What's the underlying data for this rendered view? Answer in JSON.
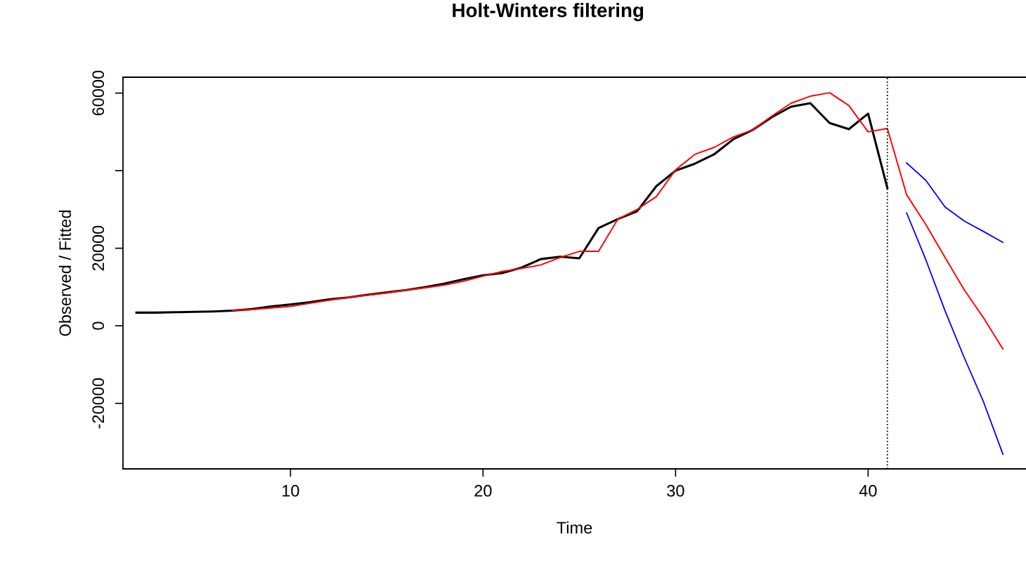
{
  "chart_data": {
    "type": "line",
    "title": "Holt-Winters filtering",
    "xlabel": "Time",
    "ylabel": "Observed / Fitted",
    "xlim": [
      1.3,
      48.2
    ],
    "xticks": [
      10,
      20,
      30,
      40
    ],
    "ylim": [
      -36900,
      64100
    ],
    "yticks": [
      -20000,
      0,
      20000,
      {
        "value": 40000,
        "label": null
      },
      60000
    ],
    "grid": false,
    "legend": false,
    "series": [
      {
        "color": "#000000",
        "x": [
          2,
          3,
          4,
          5,
          6,
          7,
          8,
          9,
          10,
          11,
          12,
          13,
          14,
          15,
          16,
          17,
          18,
          19,
          20,
          21,
          22,
          23,
          24,
          25,
          26,
          27,
          28,
          29,
          30,
          31,
          32,
          33,
          34,
          35,
          36,
          37,
          38,
          39,
          40,
          41
        ],
        "values": [
          3400,
          3400,
          3500,
          3600,
          3700,
          3900,
          4300,
          5000,
          5500,
          6100,
          6800,
          7300,
          8000,
          8600,
          9200,
          10000,
          10900,
          12000,
          13000,
          13600,
          15000,
          17200,
          17800,
          17400,
          25200,
          27500,
          29500,
          36000,
          40000,
          41800,
          44200,
          48100,
          50500,
          53800,
          56500,
          57400,
          52300,
          50700,
          54700,
          35500
        ]
      },
      {
        "color": "#ff0000",
        "x": [
          7,
          8,
          9,
          10,
          11,
          12,
          13,
          14,
          15,
          16,
          17,
          18,
          19,
          20,
          21,
          22,
          23,
          24,
          25,
          26,
          27,
          28,
          29,
          30,
          31,
          32,
          33,
          34,
          35,
          36,
          37,
          38,
          39,
          40,
          41,
          42,
          43,
          44,
          45,
          46,
          47
        ],
        "values": [
          4000,
          4200,
          4600,
          5000,
          5800,
          6600,
          7300,
          7900,
          8500,
          9200,
          9800,
          10500,
          11500,
          12800,
          14000,
          14800,
          15700,
          17600,
          19200,
          19200,
          27500,
          30000,
          33300,
          40200,
          44200,
          46000,
          48700,
          50500,
          54100,
          57400,
          59200,
          60100,
          56800,
          50000,
          50900,
          33800,
          26100,
          17600,
          9200,
          2000,
          -6000
        ]
      },
      {
        "color": "#0000ff",
        "x": [
          42,
          43,
          44,
          45,
          46,
          47
        ],
        "values": [
          42000,
          37500,
          30600,
          27000,
          24300,
          21500
        ]
      },
      {
        "color": "#0000ff",
        "x": [
          42,
          43,
          44,
          45,
          46,
          47
        ],
        "values": [
          29100,
          17000,
          3800,
          -8300,
          -19700,
          -33100
        ]
      }
    ],
    "ref_lines": [
      {
        "axis": "x",
        "value": 41,
        "color": "#000000",
        "line_style": "dotted"
      }
    ]
  }
}
